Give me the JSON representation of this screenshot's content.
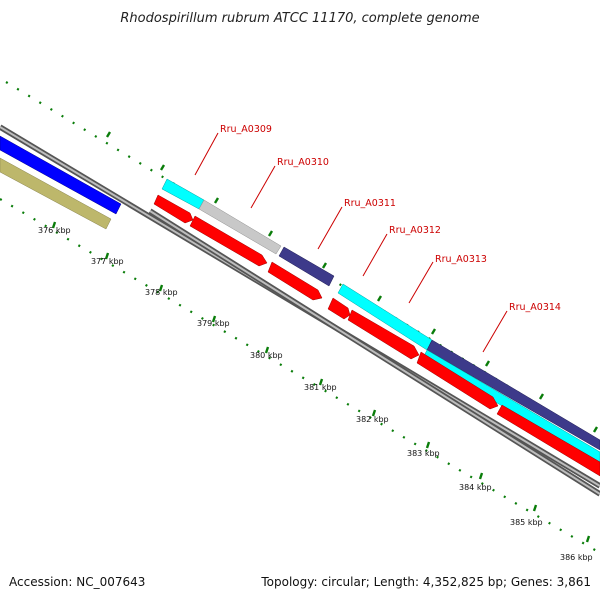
{
  "title": "Rhodospirillum rubrum ATCC 11170, complete genome",
  "footer": {
    "accession": "Accession: NC_007643",
    "summary": "Topology: circular; Length: 4,352,825 bp; Genes: 3,861"
  },
  "colors": {
    "forward_gene": "#00ffff",
    "reverse_gene": "#ff0000",
    "pseudo_gene": "#c0c0c0",
    "other_gene": "#3d3a8a",
    "blue_track": "#0000ff",
    "olive_track": "#bdb76b",
    "backbone": "#8c8c8c",
    "tick": "#0a7d0a",
    "label": "#cc0000"
  },
  "ticks": [
    "376 kbp",
    "377 kbp",
    "378 kbp",
    "379 kbp",
    "380 kbp",
    "381 kbp",
    "382 kbp",
    "383 kbp",
    "384 kbp",
    "385 kbp",
    "386 kbp"
  ],
  "gene_labels": [
    "Rru_A0309",
    "Rru_A0310",
    "Rru_A0311",
    "Rru_A0312",
    "Rru_A0313",
    "Rru_A0314"
  ]
}
